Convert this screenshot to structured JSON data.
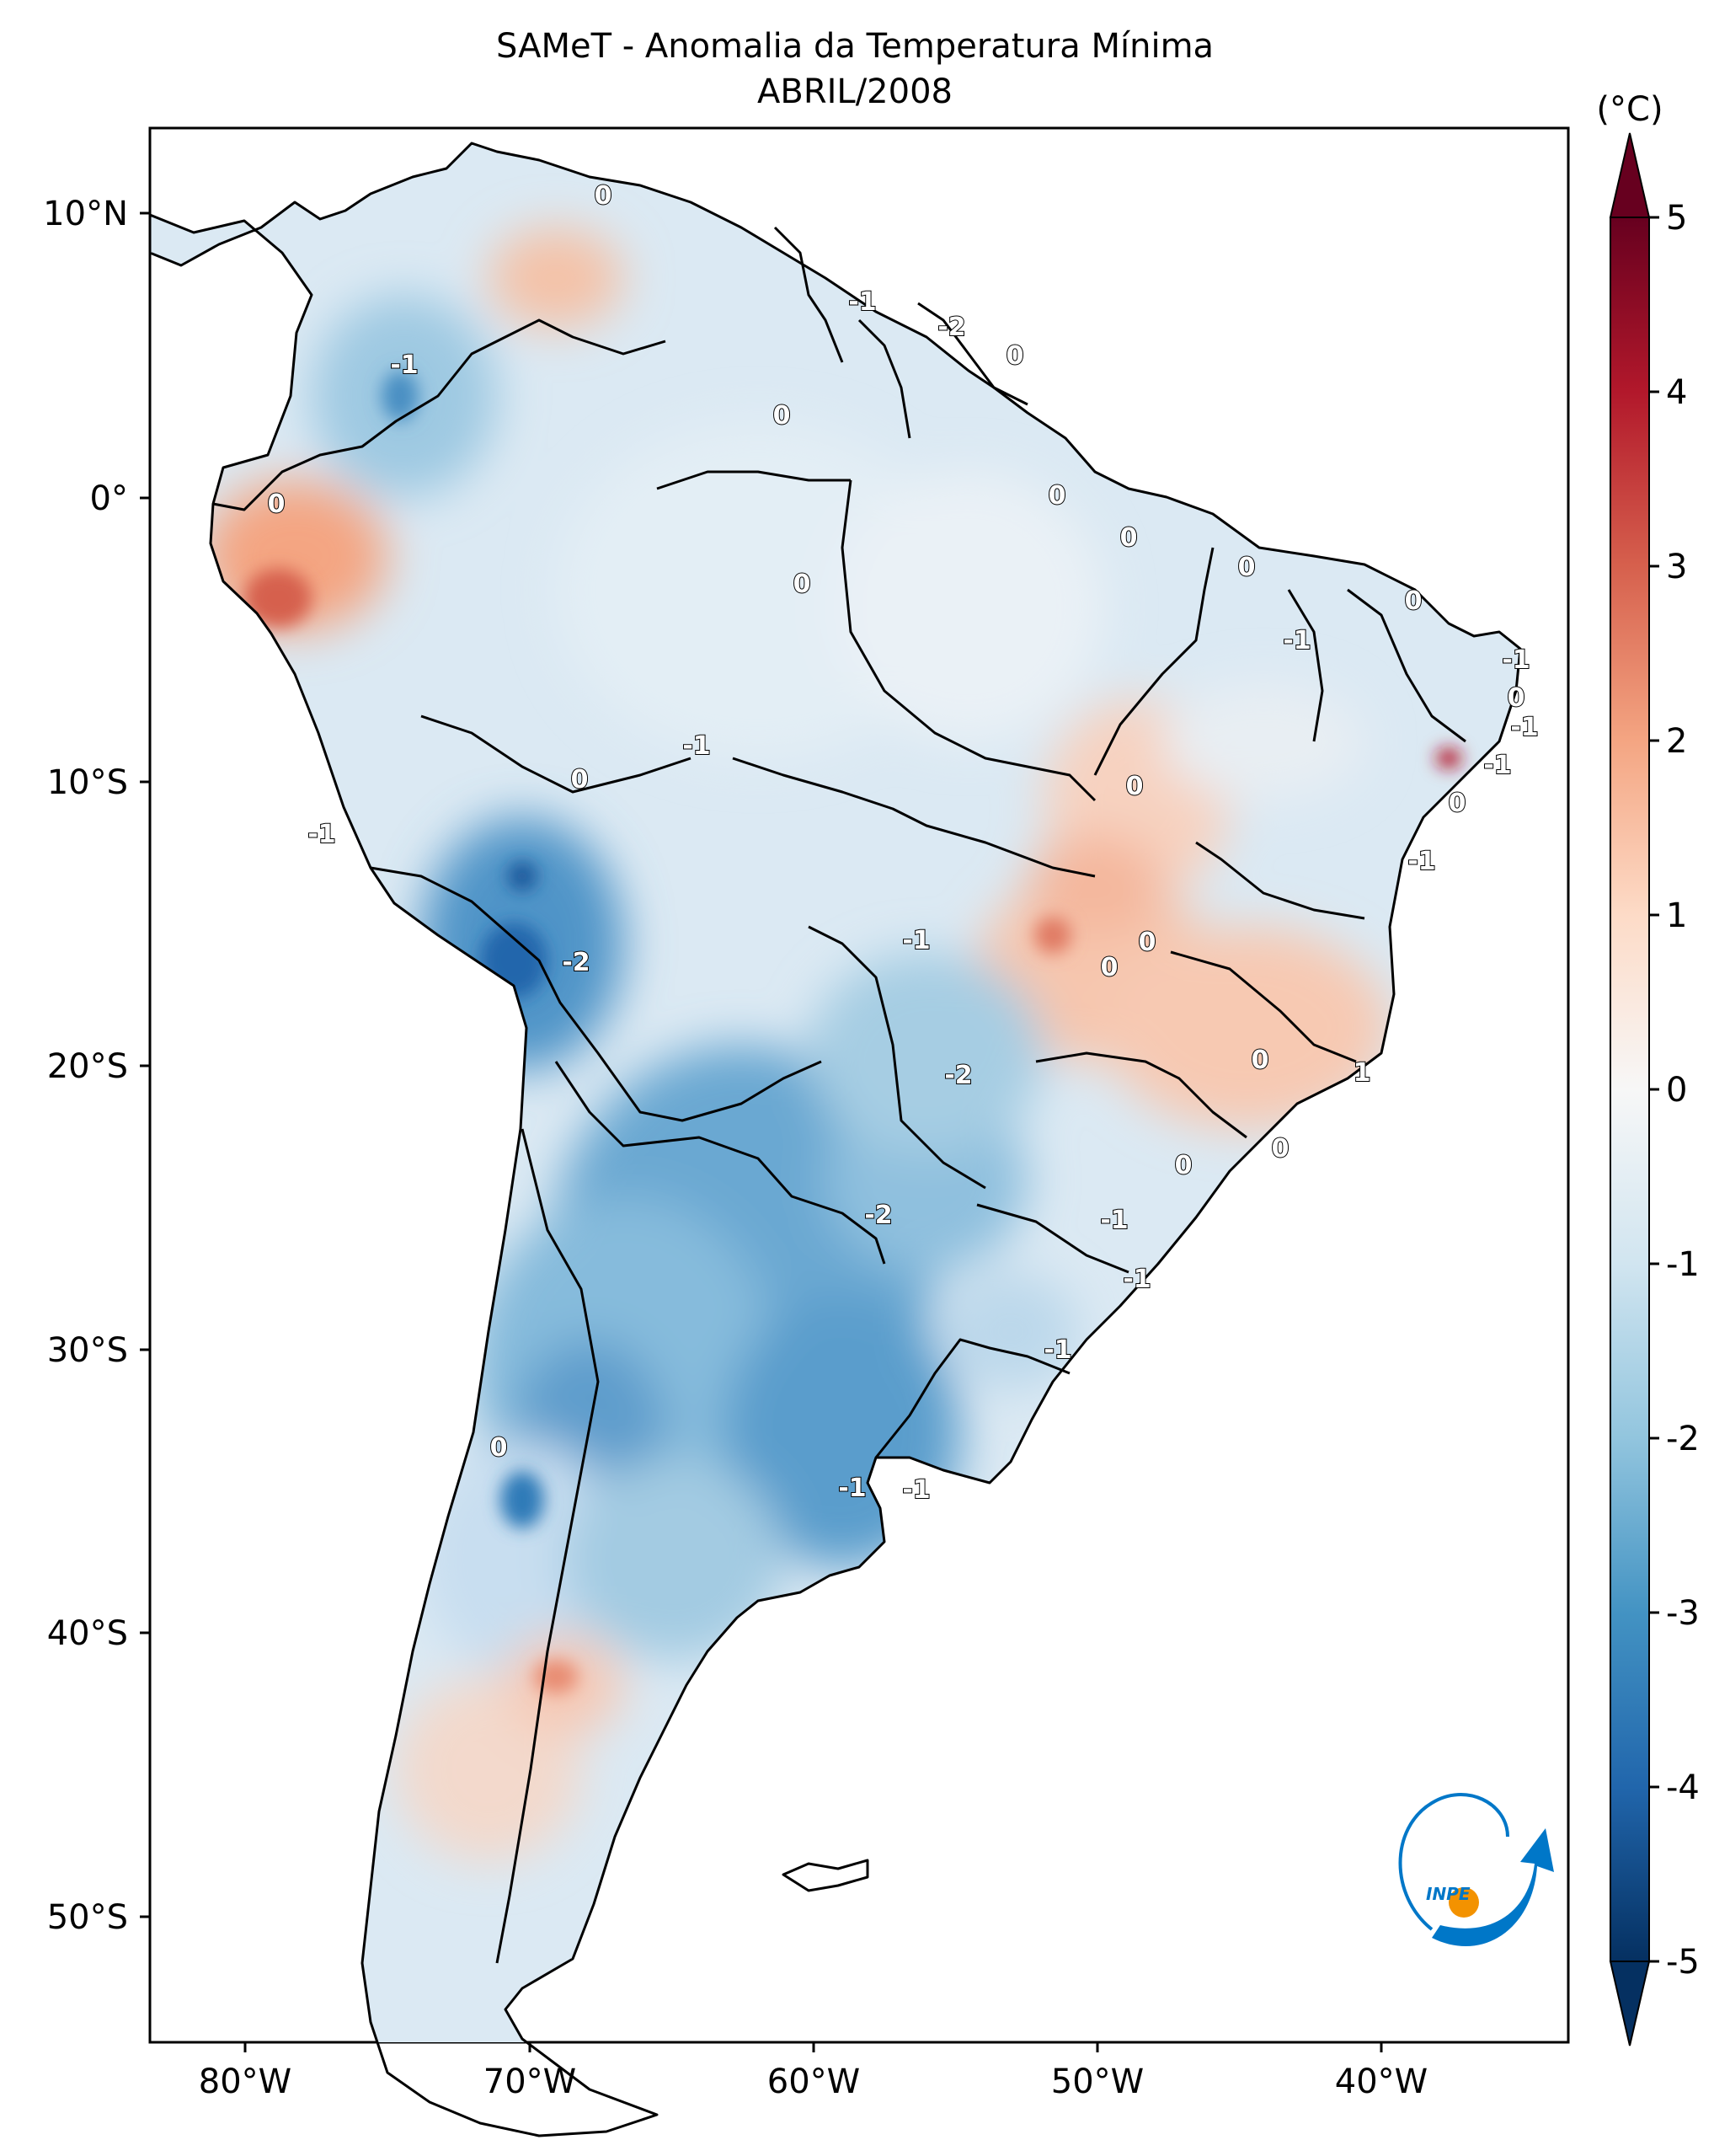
{
  "title": {
    "line1": "SAMeT - Anomalia da Temperatura Mínima",
    "line2": "ABRIL/2008"
  },
  "colorbar": {
    "unit_label": "(°C)",
    "ticks": [
      "5",
      "4",
      "3",
      "2",
      "1",
      "0",
      "-1",
      "-2",
      "-3",
      "-4",
      "-5"
    ],
    "colors": {
      "max": "#67001f",
      "high": "#d6604d",
      "mid_high": "#f4a582",
      "zero": "#f7f7f7",
      "mid_low": "#92c5de",
      "low": "#4393c3",
      "min": "#053061"
    }
  },
  "axes": {
    "lat_ticks": [
      "10°N",
      "0°",
      "10°S",
      "20°S",
      "30°S",
      "40°S",
      "50°S"
    ],
    "lon_ticks": [
      "80°W",
      "70°W",
      "60°W",
      "50°W",
      "40°W"
    ]
  },
  "contour_labels": [
    "0",
    "-1",
    "-2",
    "0",
    "0",
    "0",
    "-1",
    "0",
    "0",
    "-1",
    "0",
    "0",
    "-1",
    "-1",
    "0",
    "-1",
    "-1",
    "0",
    "-1",
    "0",
    "-1",
    "0",
    "-2",
    "-1",
    "0",
    "0",
    "-2",
    "0",
    "0",
    "1",
    "-2",
    "-1",
    "-1",
    "-1",
    "-1",
    "-1",
    "0",
    "0",
    "0"
  ],
  "logo": {
    "text": "INPE",
    "colors": {
      "blue": "#0077c8",
      "orange": "#f39200"
    }
  }
}
